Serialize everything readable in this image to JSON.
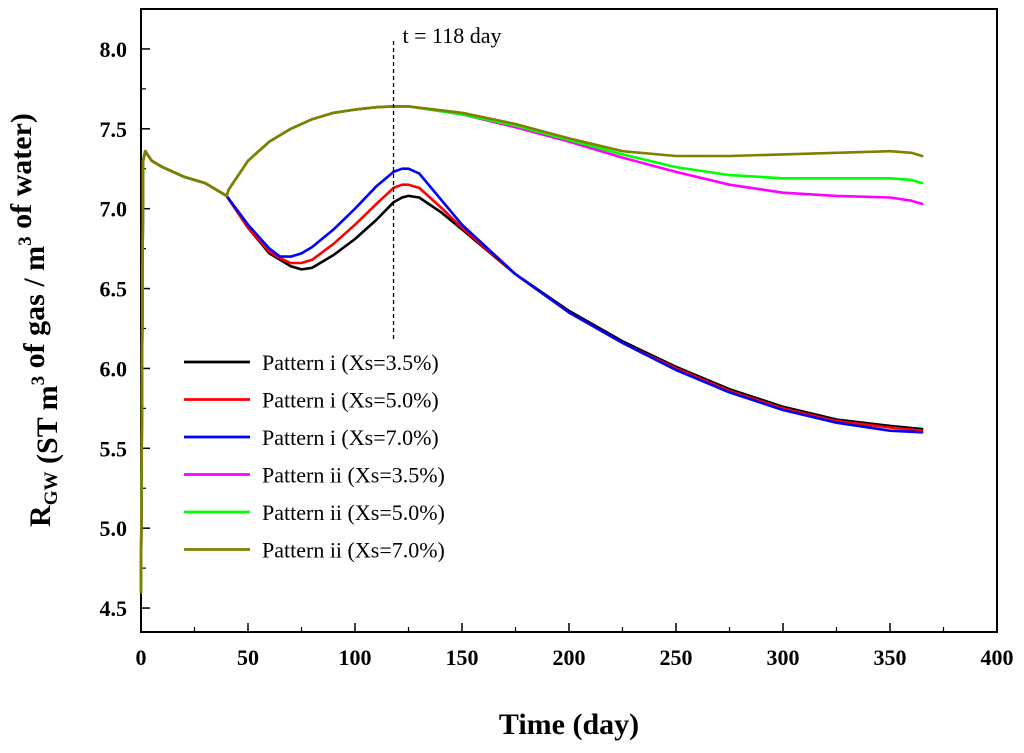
{
  "chart_data": {
    "type": "line",
    "title": "",
    "xlabel": "Time (day)",
    "ylabel": {
      "parts": [
        {
          "text": "R",
          "style": "normal"
        },
        {
          "text": "GW",
          "style": "sub"
        },
        {
          "text": " (ST m",
          "style": "normal"
        },
        {
          "text": "3",
          "style": "sup"
        },
        {
          "text": " of gas / m",
          "style": "normal"
        },
        {
          "text": "3",
          "style": "sup"
        },
        {
          "text": " of water)",
          "style": "normal"
        }
      ]
    },
    "xlim": [
      0,
      400
    ],
    "ylim": [
      4.35,
      8.25
    ],
    "xticks": [
      0,
      50,
      100,
      150,
      200,
      250,
      300,
      350,
      400
    ],
    "xtick_labels": [
      "0",
      "50",
      "100",
      "150",
      "200",
      "250",
      "300",
      "350",
      "400"
    ],
    "yticks": [
      4.5,
      5.0,
      5.5,
      6.0,
      6.5,
      7.0,
      7.5,
      8.0
    ],
    "ytick_labels": [
      "4.5",
      "5.0",
      "5.5",
      "6.0",
      "6.5",
      "7.0",
      "7.5",
      "8.0"
    ],
    "grid": false,
    "legend_position": "lower-left",
    "annotation": {
      "text": "t = 118 day",
      "x": 118,
      "y_from": 6.18,
      "y_to": 8.05
    },
    "series": [
      {
        "name": "Pattern i (Xs=3.5%)",
        "color": "#000000",
        "x": [
          0,
          1,
          2,
          5,
          10,
          20,
          30,
          40,
          50,
          60,
          65,
          70,
          75,
          80,
          90,
          100,
          110,
          118,
          122,
          125,
          130,
          140,
          150,
          175,
          200,
          225,
          250,
          275,
          300,
          325,
          350,
          365
        ],
        "y": [
          4.6,
          7.3,
          7.36,
          7.3,
          7.26,
          7.2,
          7.16,
          7.08,
          6.88,
          6.72,
          6.68,
          6.64,
          6.62,
          6.63,
          6.71,
          6.81,
          6.93,
          7.04,
          7.07,
          7.08,
          7.07,
          6.98,
          6.87,
          6.59,
          6.36,
          6.17,
          6.01,
          5.87,
          5.76,
          5.68,
          5.64,
          5.62
        ]
      },
      {
        "name": "Pattern i (Xs=5.0%)",
        "color": "#ff0000",
        "x": [
          0,
          1,
          2,
          5,
          10,
          20,
          30,
          40,
          50,
          60,
          65,
          70,
          75,
          80,
          90,
          100,
          110,
          118,
          122,
          125,
          130,
          140,
          150,
          175,
          200,
          225,
          250,
          275,
          300,
          325,
          350,
          365
        ],
        "y": [
          4.6,
          7.3,
          7.36,
          7.3,
          7.26,
          7.2,
          7.16,
          7.08,
          6.88,
          6.73,
          6.69,
          6.66,
          6.66,
          6.68,
          6.78,
          6.9,
          7.03,
          7.13,
          7.15,
          7.15,
          7.13,
          7.01,
          6.88,
          6.59,
          6.35,
          6.16,
          6.0,
          5.86,
          5.75,
          5.67,
          5.63,
          5.61
        ]
      },
      {
        "name": "Pattern i (Xs=7.0%)",
        "color": "#0000ff",
        "x": [
          0,
          1,
          2,
          5,
          10,
          20,
          30,
          40,
          50,
          60,
          65,
          70,
          75,
          80,
          90,
          100,
          110,
          118,
          122,
          125,
          130,
          140,
          150,
          175,
          200,
          225,
          250,
          275,
          300,
          325,
          350,
          365
        ],
        "y": [
          4.6,
          7.3,
          7.36,
          7.3,
          7.26,
          7.2,
          7.16,
          7.08,
          6.9,
          6.75,
          6.7,
          6.7,
          6.72,
          6.76,
          6.87,
          7.0,
          7.14,
          7.23,
          7.25,
          7.25,
          7.22,
          7.06,
          6.9,
          6.59,
          6.35,
          6.16,
          5.99,
          5.85,
          5.74,
          5.66,
          5.61,
          5.6
        ]
      },
      {
        "name": "Pattern ii (Xs=3.5%)",
        "color": "#ff00ff",
        "x": [
          0,
          1,
          2,
          5,
          10,
          20,
          30,
          40,
          41,
          50,
          60,
          70,
          80,
          90,
          100,
          110,
          118,
          125,
          150,
          175,
          200,
          225,
          250,
          275,
          300,
          325,
          350,
          360,
          365
        ],
        "y": [
          4.6,
          7.3,
          7.36,
          7.3,
          7.26,
          7.2,
          7.16,
          7.08,
          7.12,
          7.3,
          7.42,
          7.5,
          7.56,
          7.6,
          7.62,
          7.635,
          7.64,
          7.64,
          7.59,
          7.51,
          7.42,
          7.32,
          7.23,
          7.15,
          7.1,
          7.08,
          7.07,
          7.05,
          7.03
        ]
      },
      {
        "name": "Pattern ii (Xs=5.0%)",
        "color": "#00ff00",
        "x": [
          0,
          1,
          2,
          5,
          10,
          20,
          30,
          40,
          41,
          50,
          60,
          70,
          80,
          90,
          100,
          110,
          118,
          125,
          150,
          175,
          200,
          225,
          250,
          275,
          300,
          325,
          350,
          360,
          365
        ],
        "y": [
          4.6,
          7.3,
          7.36,
          7.3,
          7.26,
          7.2,
          7.16,
          7.08,
          7.12,
          7.3,
          7.42,
          7.5,
          7.56,
          7.6,
          7.62,
          7.635,
          7.64,
          7.64,
          7.59,
          7.52,
          7.43,
          7.34,
          7.26,
          7.21,
          7.19,
          7.19,
          7.19,
          7.18,
          7.16
        ]
      },
      {
        "name": "Pattern ii (Xs=7.0%)",
        "color": "#808000",
        "x": [
          0,
          1,
          2,
          5,
          10,
          20,
          30,
          40,
          41,
          50,
          60,
          70,
          80,
          90,
          100,
          110,
          118,
          125,
          150,
          175,
          200,
          225,
          250,
          275,
          300,
          325,
          350,
          360,
          365
        ],
        "y": [
          4.6,
          7.3,
          7.36,
          7.3,
          7.26,
          7.2,
          7.16,
          7.08,
          7.12,
          7.3,
          7.42,
          7.5,
          7.56,
          7.6,
          7.62,
          7.635,
          7.64,
          7.64,
          7.6,
          7.53,
          7.44,
          7.36,
          7.33,
          7.33,
          7.34,
          7.35,
          7.36,
          7.35,
          7.33
        ]
      }
    ]
  }
}
